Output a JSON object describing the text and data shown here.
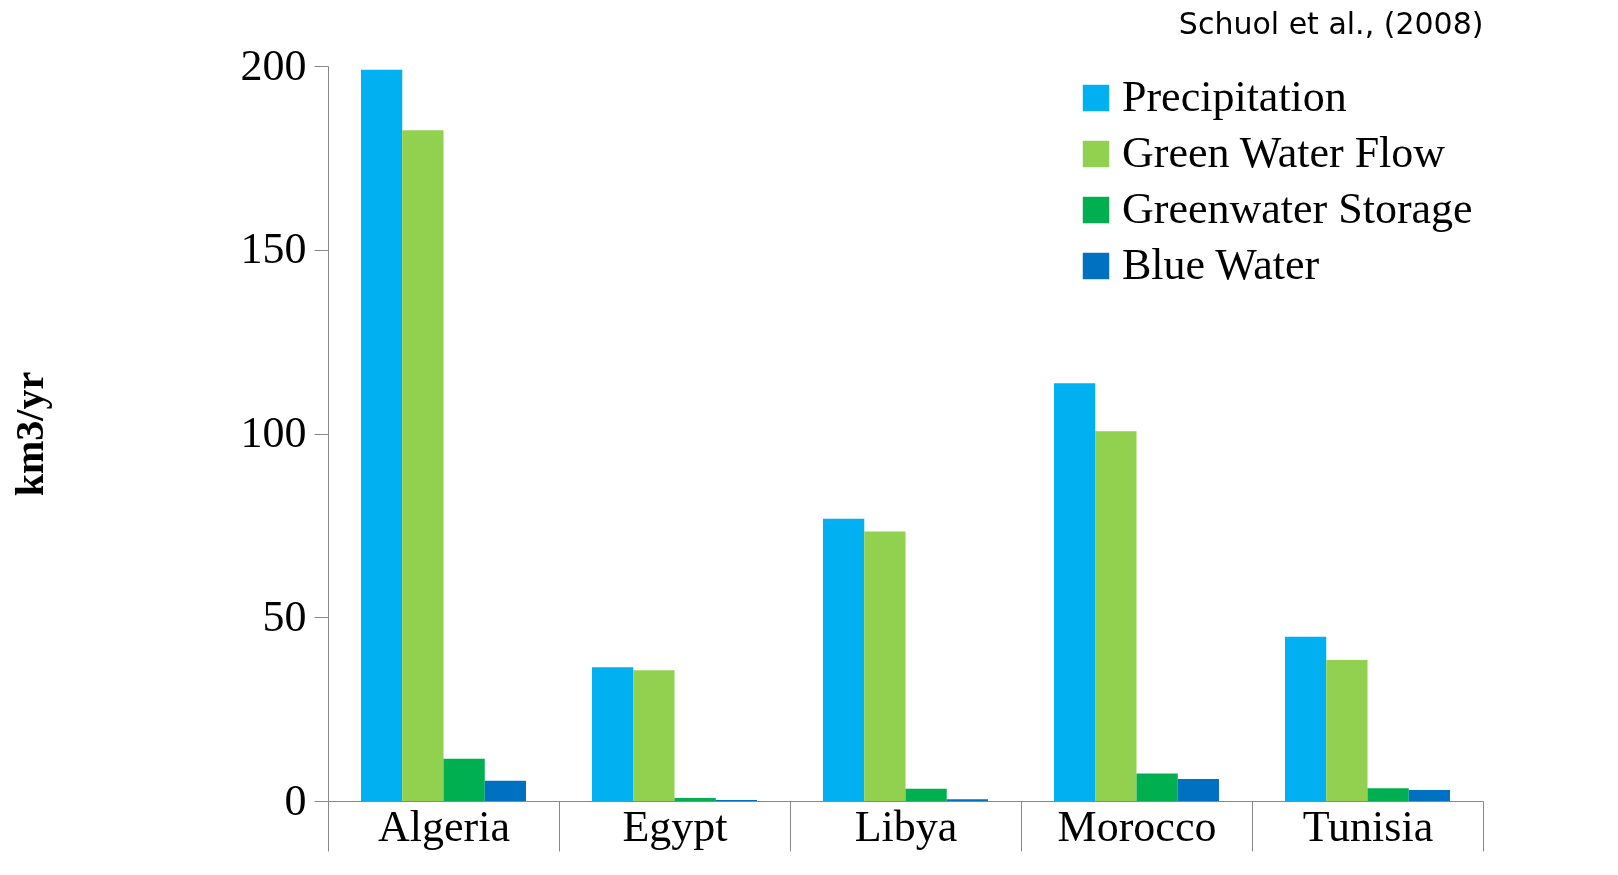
{
  "chart_data": {
    "type": "bar",
    "ylabel": "km3/yr",
    "annotations": [
      "Schuol et al., (2008)"
    ],
    "categories": [
      "Algeria",
      "Egypt",
      "Libya",
      "Morocco",
      "Tunisia"
    ],
    "series": [
      {
        "name": "Precipitation",
        "color": "#00b0f0",
        "values": [
          199,
          36.4,
          76.8,
          113.7,
          44.7
        ]
      },
      {
        "name": "Green Water Flow",
        "color": "#92d050",
        "values": [
          182.5,
          35.6,
          73.3,
          100.6,
          38.4
        ]
      },
      {
        "name": "Greenwater Storage",
        "color": "#00b050",
        "values": [
          11.5,
          0.8,
          3.3,
          7.5,
          3.5
        ]
      },
      {
        "name": "Blue Water",
        "color": "#0070c0",
        "values": [
          5.5,
          0.3,
          0.5,
          6,
          3
        ]
      }
    ],
    "ylim": [
      0,
      200
    ],
    "yticks": [
      0,
      50,
      100,
      150,
      200
    ],
    "grid": false,
    "legend": "top right"
  }
}
